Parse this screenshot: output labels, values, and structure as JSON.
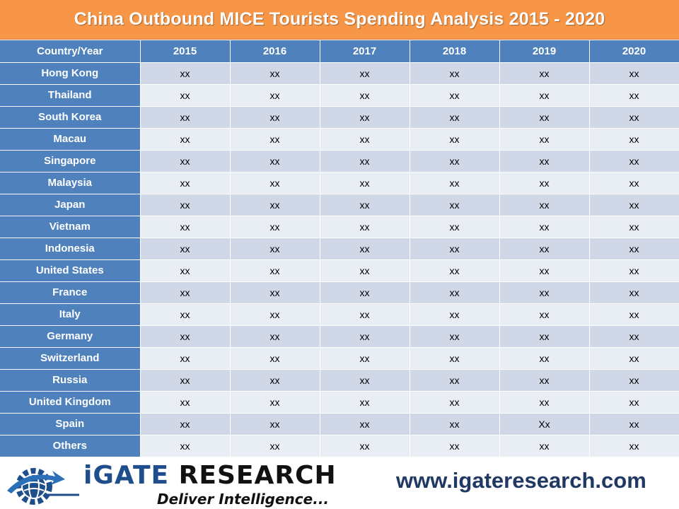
{
  "chart_data": {
    "type": "table",
    "title": "China Outbound MICE Tourists Spending Analysis 2015 - 2020",
    "corner_header": "Country/Year",
    "columns": [
      "2015",
      "2016",
      "2017",
      "2018",
      "2019",
      "2020"
    ],
    "rows": [
      {
        "label": "Hong Kong",
        "values": [
          "xx",
          "xx",
          "xx",
          "xx",
          "xx",
          "xx"
        ]
      },
      {
        "label": "Thailand",
        "values": [
          "xx",
          "xx",
          "xx",
          "xx",
          "xx",
          "xx"
        ]
      },
      {
        "label": "South Korea",
        "values": [
          "xx",
          "xx",
          "xx",
          "xx",
          "xx",
          "xx"
        ]
      },
      {
        "label": "Macau",
        "values": [
          "xx",
          "xx",
          "xx",
          "xx",
          "xx",
          "xx"
        ]
      },
      {
        "label": "Singapore",
        "values": [
          "xx",
          "xx",
          "xx",
          "xx",
          "xx",
          "xx"
        ]
      },
      {
        "label": "Malaysia",
        "values": [
          "xx",
          "xx",
          "xx",
          "xx",
          "xx",
          "xx"
        ]
      },
      {
        "label": "Japan",
        "values": [
          "xx",
          "xx",
          "xx",
          "xx",
          "xx",
          "xx"
        ]
      },
      {
        "label": "Vietnam",
        "values": [
          "xx",
          "xx",
          "xx",
          "xx",
          "xx",
          "xx"
        ]
      },
      {
        "label": "Indonesia",
        "values": [
          "xx",
          "xx",
          "xx",
          "xx",
          "xx",
          "xx"
        ]
      },
      {
        "label": "United States",
        "values": [
          "xx",
          "xx",
          "xx",
          "xx",
          "xx",
          "xx"
        ]
      },
      {
        "label": "France",
        "values": [
          "xx",
          "xx",
          "xx",
          "xx",
          "xx",
          "xx"
        ]
      },
      {
        "label": "Italy",
        "values": [
          "xx",
          "xx",
          "xx",
          "xx",
          "xx",
          "xx"
        ]
      },
      {
        "label": "Germany",
        "values": [
          "xx",
          "xx",
          "xx",
          "xx",
          "xx",
          "xx"
        ]
      },
      {
        "label": "Switzerland",
        "values": [
          "xx",
          "xx",
          "xx",
          "xx",
          "xx",
          "xx"
        ]
      },
      {
        "label": "Russia",
        "values": [
          "xx",
          "xx",
          "xx",
          "xx",
          "xx",
          "xx"
        ]
      },
      {
        "label": "United Kingdom",
        "values": [
          "xx",
          "xx",
          "xx",
          "xx",
          "xx",
          "xx"
        ]
      },
      {
        "label": "Spain",
        "values": [
          "xx",
          "xx",
          "xx",
          "xx",
          "Xx",
          "xx"
        ]
      },
      {
        "label": "Others",
        "values": [
          "xx",
          "xx",
          "xx",
          "xx",
          "xx",
          "xx"
        ]
      }
    ]
  },
  "branding": {
    "logo_part_a": "iGATE",
    "logo_part_b": "RESEARCH",
    "tagline": "Deliver Intelligence...",
    "url": "www.igateresearch.com"
  },
  "colors": {
    "title_bar": "#f79646",
    "header_blue": "#4f81bd",
    "row_odd": "#d0d8e8",
    "row_even": "#e9edf4",
    "brand_blue": "#1f4e8c",
    "url_navy": "#1f3864"
  },
  "icons": {
    "logo": "gear-globe-icon"
  }
}
